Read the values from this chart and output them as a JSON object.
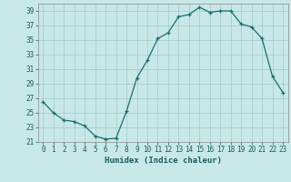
{
  "x": [
    0,
    1,
    2,
    3,
    4,
    5,
    6,
    7,
    8,
    9,
    10,
    11,
    12,
    13,
    14,
    15,
    16,
    17,
    18,
    19,
    20,
    21,
    22,
    23
  ],
  "y": [
    26.5,
    25.0,
    24.0,
    23.8,
    23.2,
    21.8,
    21.4,
    21.5,
    25.2,
    29.8,
    32.2,
    35.2,
    36.0,
    38.2,
    38.5,
    39.5,
    38.8,
    39.0,
    39.0,
    37.2,
    36.8,
    35.2,
    30.0,
    27.8
  ],
  "xlabel": "Humidex (Indice chaleur)",
  "bg_color": "#c8e8e8",
  "line_color": "#1a6e6e",
  "grid_color": "#a0c8c8",
  "ylim": [
    21,
    40
  ],
  "yticks": [
    21,
    23,
    25,
    27,
    29,
    31,
    33,
    35,
    37,
    39
  ],
  "xticks": [
    0,
    1,
    2,
    3,
    4,
    5,
    6,
    7,
    8,
    9,
    10,
    11,
    12,
    13,
    14,
    15,
    16,
    17,
    18,
    19,
    20,
    21,
    22,
    23
  ],
  "tick_fontsize": 5.5,
  "xlabel_fontsize": 6.5
}
